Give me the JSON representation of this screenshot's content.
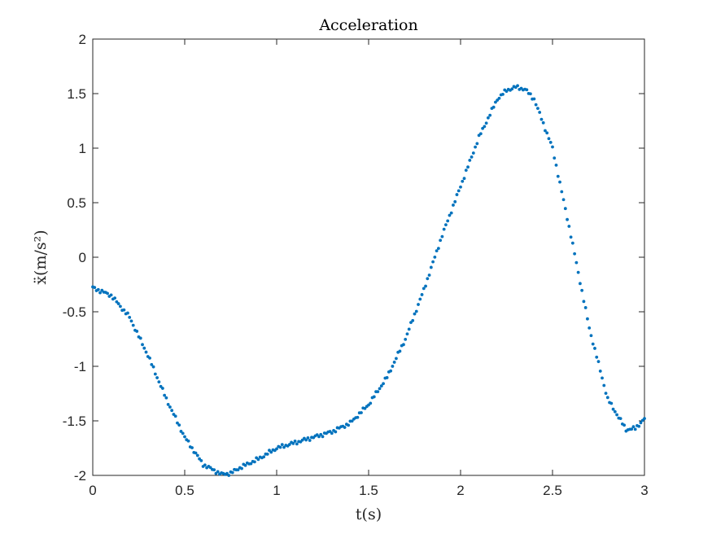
{
  "chart_data": {
    "type": "scatter",
    "title": "Acceleration",
    "xlabel": "t(s)",
    "ylabel": "ẍ(m/s²)",
    "xlim": [
      0,
      3
    ],
    "ylim": [
      -2,
      2
    ],
    "xticks": [
      0,
      0.5,
      1,
      1.5,
      2,
      2.5,
      3
    ],
    "xtick_labels": [
      "0",
      "0.5",
      "1",
      "1.5",
      "2",
      "2.5",
      "3"
    ],
    "yticks": [
      -2,
      -1.5,
      -1,
      -0.5,
      0,
      0.5,
      1,
      1.5,
      2
    ],
    "ytick_labels": [
      "-2",
      "-1.5",
      "-1",
      "-0.5",
      "0",
      "0.5",
      "1",
      "1.5",
      "2"
    ],
    "grid": false,
    "box": true,
    "marker_color": "#0072BD",
    "series": [
      {
        "x": [
          0,
          0.1,
          0.2,
          0.3,
          0.4,
          0.5,
          0.6,
          0.7,
          0.75,
          0.8,
          0.9,
          1.0,
          1.1,
          1.2,
          1.3,
          1.4,
          1.5,
          1.6,
          1.7,
          1.8,
          1.9,
          2.0,
          2.1,
          2.2,
          2.25,
          2.3,
          2.35,
          2.4,
          2.5,
          2.6,
          2.7,
          2.8,
          2.9,
          2.95,
          3.0
        ],
        "y": [
          -0.28,
          -0.35,
          -0.55,
          -0.9,
          -1.3,
          -1.65,
          -1.9,
          -1.99,
          -1.98,
          -1.93,
          -1.85,
          -1.75,
          -1.7,
          -1.65,
          -1.6,
          -1.52,
          -1.35,
          -1.1,
          -0.75,
          -0.3,
          0.2,
          0.65,
          1.1,
          1.45,
          1.53,
          1.56,
          1.54,
          1.45,
          1.0,
          0.2,
          -0.65,
          -1.3,
          -1.58,
          -1.57,
          -1.48
        ]
      }
    ]
  }
}
